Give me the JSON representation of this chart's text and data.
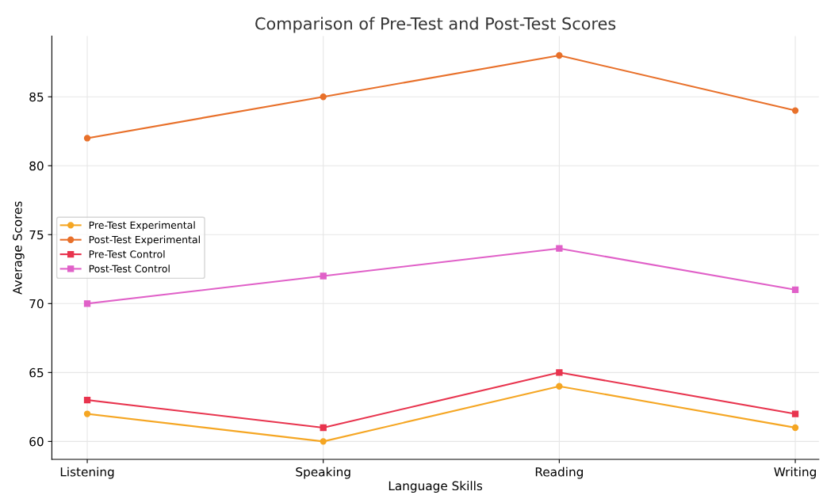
{
  "chart_data": {
    "type": "line",
    "title": "Comparison of Pre-Test and Post-Test Scores",
    "xlabel": "Language Skills",
    "ylabel": "Average Scores",
    "categories": [
      "Listening",
      "Speaking",
      "Reading",
      "Writing"
    ],
    "series": [
      {
        "name": "Pre-Test Experimental",
        "color": "#f5a623",
        "marker": "circle",
        "values": [
          62,
          60,
          64,
          61
        ]
      },
      {
        "name": "Post-Test Experimental",
        "color": "#e8702a",
        "marker": "circle",
        "values": [
          82,
          85,
          88,
          84
        ]
      },
      {
        "name": "Pre-Test Control",
        "color": "#e8344e",
        "marker": "square",
        "values": [
          63,
          61,
          65,
          62
        ]
      },
      {
        "name": "Post-Test Control",
        "color": "#e060c8",
        "marker": "square",
        "values": [
          70,
          72,
          74,
          71
        ]
      }
    ],
    "ylim": [
      58.7,
      89.4
    ],
    "yticks": [
      60,
      65,
      70,
      75,
      80,
      85
    ],
    "grid": true,
    "legend": "center left",
    "line_style": "solid"
  }
}
